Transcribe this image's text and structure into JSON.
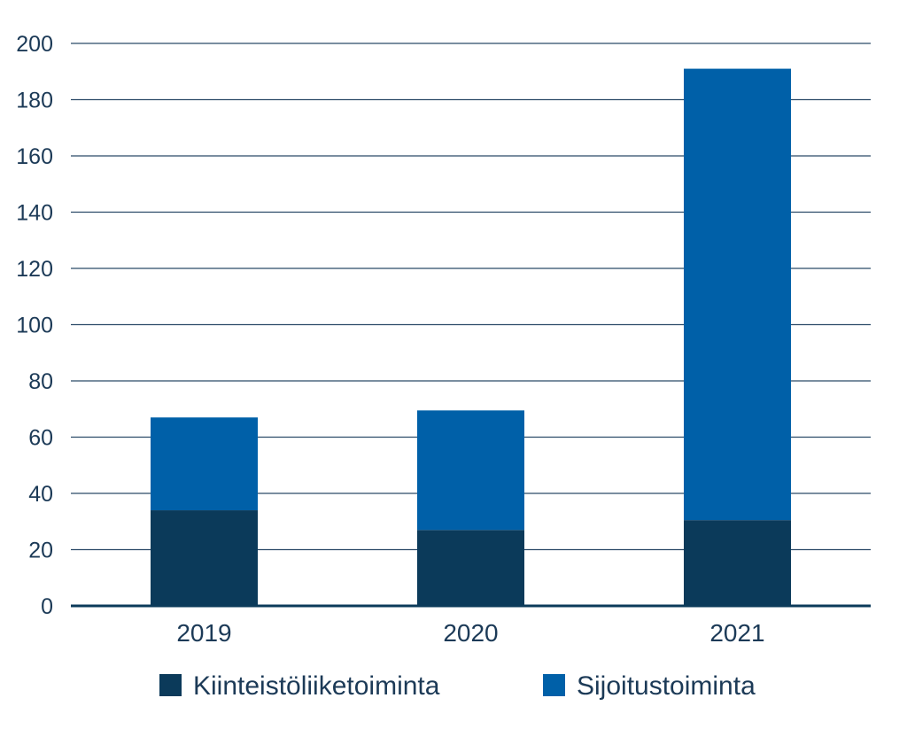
{
  "chart_data": {
    "type": "bar",
    "stacked": true,
    "categories": [
      "2019",
      "2020",
      "2021"
    ],
    "series": [
      {
        "name": "Kiinteistöliiketoiminta",
        "values": [
          34,
          27,
          30.5
        ],
        "color": "#0b3a5a"
      },
      {
        "name": "Sijoitustoiminta",
        "values": [
          33,
          42.5,
          160.5
        ],
        "color": "#0060a8"
      }
    ],
    "title": "",
    "xlabel": "",
    "ylabel": "",
    "ylim": [
      0,
      200
    ],
    "yticks": [
      "0",
      "20",
      "40",
      "60",
      "80",
      "100",
      "120",
      "140",
      "160",
      "180",
      "200"
    ],
    "grid": true,
    "legend": "bottom-center"
  }
}
